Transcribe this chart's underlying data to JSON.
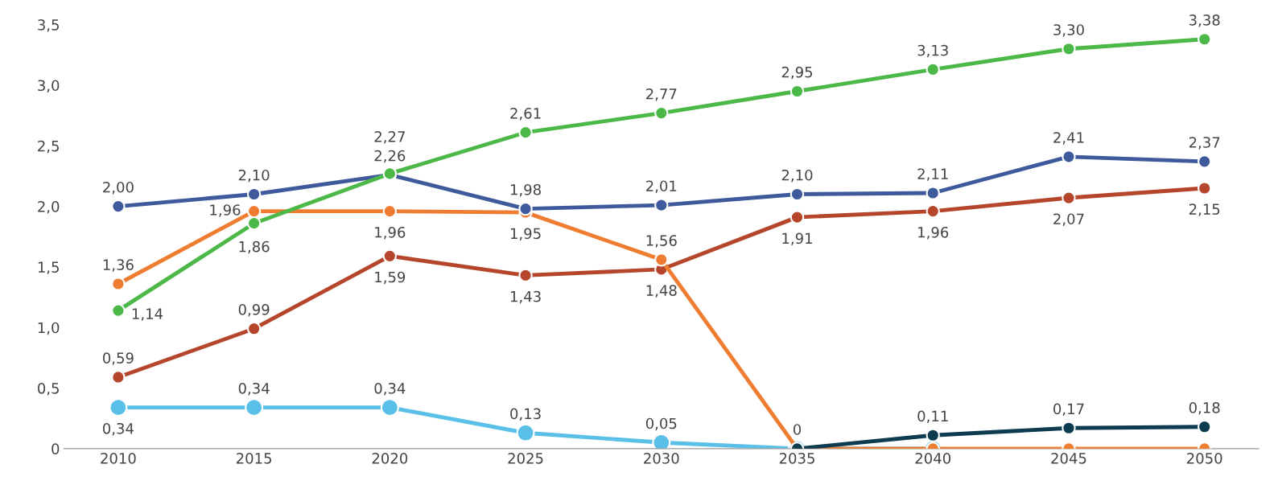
{
  "chart_data": {
    "type": "line",
    "categories": [
      "2010",
      "2015",
      "2020",
      "2025",
      "2030",
      "2035",
      "2040",
      "2045",
      "2050"
    ],
    "series": [
      {
        "color": "#3f5a9c",
        "values": [
          2.0,
          2.1,
          2.26,
          1.98,
          2.01,
          2.1,
          2.11,
          2.41,
          2.37
        ],
        "value_labels": [
          "2,00",
          "2,10",
          "2,26",
          "1,98",
          "2,01",
          "2,10",
          "2,11",
          "2,41",
          "2,37"
        ]
      },
      {
        "color": "#4cb848",
        "values": [
          1.14,
          1.86,
          2.27,
          2.61,
          2.77,
          2.95,
          3.13,
          3.3,
          3.38
        ],
        "value_labels": [
          "1,14",
          "1,86",
          "2,27",
          "2,61",
          "2,77",
          "2,95",
          "3,13",
          "3,30",
          "3,38"
        ]
      },
      {
        "color": "#ee7d31",
        "values": [
          1.36,
          1.96,
          1.96,
          1.95,
          1.56,
          0,
          0,
          0,
          0
        ],
        "value_labels": [
          "1,36",
          "1,96",
          "1,96",
          "1,95",
          "1,56",
          "0",
          null,
          null,
          null
        ]
      },
      {
        "color": "#b5462b",
        "values": [
          0.59,
          0.99,
          1.59,
          1.43,
          1.48,
          1.91,
          1.96,
          2.07,
          2.15
        ],
        "value_labels": [
          "0,59",
          "0,99",
          "1,59",
          "1,43",
          "1,48",
          "1,91",
          "1,96",
          "2,07",
          "2,15"
        ]
      },
      {
        "color": "#5bc0e8",
        "values": [
          0.34,
          0.34,
          0.34,
          0.13,
          0.05,
          0,
          0,
          null,
          null
        ],
        "value_labels": [
          "0,34",
          "0,34",
          "0,34",
          "0,13",
          "0,05",
          null,
          null,
          null,
          null
        ]
      },
      {
        "color": "#0d3b4f",
        "values": [
          null,
          null,
          null,
          null,
          null,
          0,
          0.11,
          0.17,
          0.18
        ],
        "value_labels": [
          null,
          null,
          null,
          null,
          null,
          null,
          "0,11",
          "0,17",
          "0,18"
        ]
      }
    ],
    "ylim": [
      0,
      3.5
    ],
    "yticks": [
      {
        "value": 0,
        "label": "0"
      },
      {
        "value": 0.5,
        "label": "0,5"
      },
      {
        "value": 1.0,
        "label": "1,0"
      },
      {
        "value": 1.5,
        "label": "1,5"
      },
      {
        "value": 2.0,
        "label": "2,0"
      },
      {
        "value": 2.5,
        "label": "2,5"
      },
      {
        "value": 3.0,
        "label": "3,0"
      },
      {
        "value": 3.5,
        "label": "3,5"
      }
    ],
    "marker": "circle",
    "line_style": "solid",
    "grid": false,
    "legend": false
  }
}
